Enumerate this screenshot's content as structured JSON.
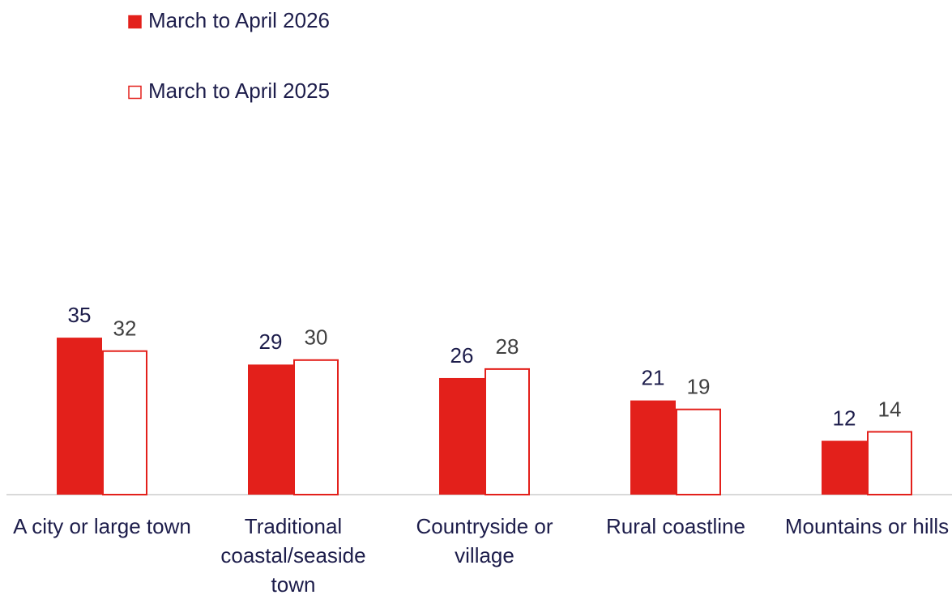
{
  "chart_data": {
    "type": "bar",
    "categories": [
      "A city or large town",
      "Traditional coastal/seaside town",
      "Countryside or village",
      "Rural coastline",
      "Mountains or hills"
    ],
    "series": [
      {
        "name": "March to April 2026",
        "color": "#e3201b",
        "values": [
          35,
          29,
          26,
          21,
          12
        ]
      },
      {
        "name": "March to April 2025",
        "color": "#ffffff",
        "values": [
          32,
          30,
          28,
          19,
          14
        ]
      }
    ],
    "edge_color": "#e3201b",
    "ylim": [
      0,
      40
    ],
    "legend": "top-left"
  }
}
